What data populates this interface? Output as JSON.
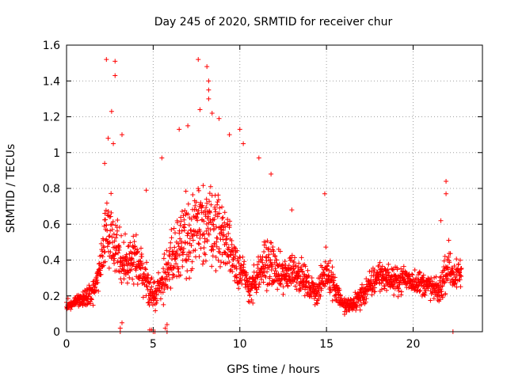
{
  "chart_data": {
    "type": "scatter",
    "title": "Day 245 of 2020, SRMTID for receiver chur",
    "xlabel": "GPS time / hours",
    "ylabel": "SRMTID / TECUs",
    "xlim": [
      0,
      24
    ],
    "ylim": [
      0,
      1.6
    ],
    "xticks": [
      0,
      5,
      10,
      15,
      20
    ],
    "xtick_labels": [
      "0",
      "5",
      "10",
      "15",
      "20"
    ],
    "yticks": [
      0,
      0.2,
      0.4,
      0.6,
      0.8,
      1.0,
      1.2,
      1.4,
      1.6
    ],
    "ytick_labels": [
      "0",
      "0.2",
      "0.4",
      "0.6",
      "0.8",
      "1",
      "1.2",
      "1.4",
      "1.6"
    ],
    "grid": true,
    "marker": "plus",
    "color": "#ff0000",
    "envelope_hours": [
      0,
      0.5,
      1.0,
      1.5,
      2.0,
      2.3,
      2.6,
      2.9,
      3.2,
      3.6,
      4.0,
      4.5,
      5.0,
      5.3,
      5.8,
      6.2,
      6.6,
      7.0,
      7.5,
      8.0,
      8.5,
      9.0,
      9.5,
      10.0,
      10.5,
      11.0,
      11.5,
      12.0,
      12.5,
      13.0,
      13.5,
      14.0,
      14.5,
      15.0,
      15.5,
      16.0,
      16.5,
      17.0,
      17.5,
      18.0,
      18.5,
      19.0,
      19.5,
      20.0,
      20.5,
      21.0,
      21.5,
      22.0,
      22.4,
      22.8
    ],
    "envelope_center": [
      0.15,
      0.17,
      0.18,
      0.22,
      0.35,
      0.55,
      0.52,
      0.45,
      0.4,
      0.38,
      0.4,
      0.3,
      0.2,
      0.25,
      0.32,
      0.45,
      0.5,
      0.55,
      0.55,
      0.62,
      0.6,
      0.55,
      0.45,
      0.35,
      0.25,
      0.28,
      0.4,
      0.35,
      0.3,
      0.35,
      0.32,
      0.25,
      0.22,
      0.35,
      0.25,
      0.14,
      0.15,
      0.2,
      0.25,
      0.32,
      0.3,
      0.28,
      0.3,
      0.28,
      0.27,
      0.25,
      0.22,
      0.38,
      0.3,
      0.33
    ],
    "envelope_spread": [
      0.05,
      0.05,
      0.06,
      0.1,
      0.18,
      0.3,
      0.3,
      0.25,
      0.22,
      0.2,
      0.2,
      0.18,
      0.12,
      0.15,
      0.2,
      0.25,
      0.28,
      0.3,
      0.32,
      0.35,
      0.3,
      0.28,
      0.22,
      0.18,
      0.12,
      0.15,
      0.2,
      0.18,
      0.15,
      0.15,
      0.13,
      0.1,
      0.1,
      0.15,
      0.12,
      0.06,
      0.07,
      0.1,
      0.12,
      0.12,
      0.1,
      0.1,
      0.1,
      0.1,
      0.1,
      0.1,
      0.09,
      0.2,
      0.12,
      0.12
    ],
    "outliers": [
      {
        "x": 2.3,
        "y": 1.52
      },
      {
        "x": 2.8,
        "y": 1.51
      },
      {
        "x": 2.8,
        "y": 1.43
      },
      {
        "x": 2.6,
        "y": 1.23
      },
      {
        "x": 2.4,
        "y": 1.08
      },
      {
        "x": 2.2,
        "y": 0.94
      },
      {
        "x": 2.7,
        "y": 1.05
      },
      {
        "x": 3.2,
        "y": 1.1
      },
      {
        "x": 7.6,
        "y": 1.52
      },
      {
        "x": 8.1,
        "y": 1.48
      },
      {
        "x": 8.2,
        "y": 1.4
      },
      {
        "x": 8.2,
        "y": 1.35
      },
      {
        "x": 8.2,
        "y": 1.3
      },
      {
        "x": 7.7,
        "y": 1.24
      },
      {
        "x": 8.8,
        "y": 1.19
      },
      {
        "x": 8.4,
        "y": 1.22
      },
      {
        "x": 6.5,
        "y": 1.13
      },
      {
        "x": 7.0,
        "y": 1.15
      },
      {
        "x": 9.4,
        "y": 1.1
      },
      {
        "x": 10.0,
        "y": 1.13
      },
      {
        "x": 10.2,
        "y": 1.05
      },
      {
        "x": 11.1,
        "y": 0.97
      },
      {
        "x": 5.5,
        "y": 0.97
      },
      {
        "x": 4.6,
        "y": 0.79
      },
      {
        "x": 11.8,
        "y": 0.88
      },
      {
        "x": 14.9,
        "y": 0.77
      },
      {
        "x": 21.9,
        "y": 0.84
      },
      {
        "x": 21.9,
        "y": 0.77
      },
      {
        "x": 21.6,
        "y": 0.62
      },
      {
        "x": 13.0,
        "y": 0.68
      }
    ],
    "low_points": [
      {
        "x": 3.1,
        "y": 0.02
      },
      {
        "x": 3.2,
        "y": 0.05
      },
      {
        "x": 4.8,
        "y": 0.01
      },
      {
        "x": 4.9,
        "y": 0.01
      },
      {
        "x": 5.0,
        "y": 0.0
      },
      {
        "x": 5.1,
        "y": 0.0
      },
      {
        "x": 5.7,
        "y": 0.02
      },
      {
        "x": 5.8,
        "y": 0.04
      },
      {
        "x": 3.1,
        "y": 0.0
      },
      {
        "x": 5.8,
        "y": 0.0
      },
      {
        "x": 22.3,
        "y": 0.0
      }
    ]
  }
}
